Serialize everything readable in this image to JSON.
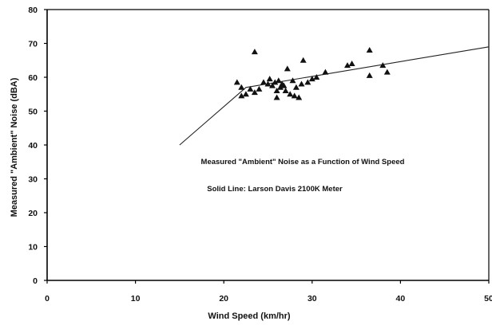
{
  "chart_data": {
    "type": "scatter",
    "xlabel": "Wind Speed (km/hr)",
    "ylabel": "Measured \"Ambient\" Noise (dBA)",
    "xlim": [
      0,
      50
    ],
    "ylim": [
      0,
      80
    ],
    "x_ticks": [
      "0",
      "10",
      "20",
      "30",
      "40",
      "50"
    ],
    "y_ticks": [
      "0",
      "10",
      "20",
      "30",
      "40",
      "50",
      "60",
      "70",
      "80"
    ],
    "grid": false,
    "annotations": [
      "Measured \"Ambient\" Noise as a Function of Wind Speed",
      "Solid Line: Larson Davis 2100K Meter"
    ],
    "series": [
      {
        "type": "scatter",
        "marker": "triangle",
        "x": [
          21.5,
          22,
          22,
          22.5,
          23,
          23.5,
          23.5,
          24,
          24.5,
          25,
          25.2,
          25.5,
          25.8,
          26,
          26,
          26.2,
          26.4,
          26.6,
          26.8,
          27,
          27.2,
          27.5,
          27.8,
          28,
          28.2,
          28.5,
          28.8,
          29,
          29.5,
          30,
          30.5,
          31.5,
          34,
          34.5,
          36.5,
          36.5,
          38,
          38.5
        ],
        "y": [
          58.5,
          57,
          54.5,
          55,
          56.5,
          55.5,
          67.5,
          56.5,
          58.5,
          58,
          59.5,
          57.5,
          58.5,
          56,
          54,
          59,
          57,
          58,
          57.5,
          56,
          62.5,
          55,
          59,
          54.5,
          57,
          54,
          58,
          65,
          58.5,
          59.5,
          60,
          61.5,
          63.5,
          64,
          68,
          60.5,
          63.5,
          61.5
        ]
      },
      {
        "type": "line",
        "x": [
          15,
          22.5,
          50
        ],
        "y": [
          40,
          57,
          69
        ]
      }
    ]
  }
}
